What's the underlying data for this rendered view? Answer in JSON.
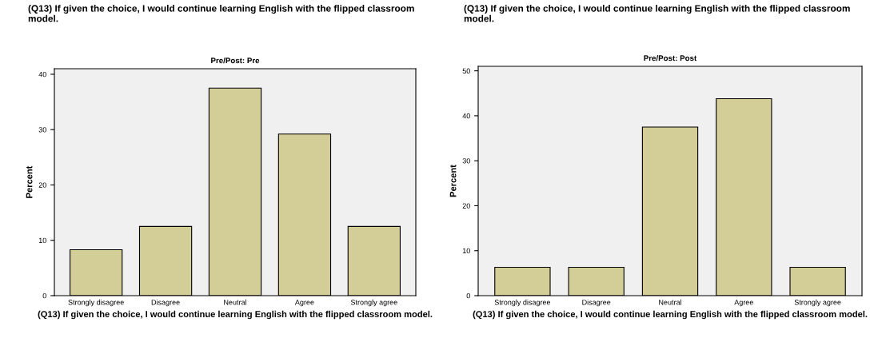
{
  "chart_data": [
    {
      "type": "bar",
      "title": "(Q13) If given the choice, I would continue learning English with the flipped classroom model.",
      "subtitle": "Pre/Post: Pre",
      "xlabel": "(Q13) If given the choice, I would continue learning English with the flipped classroom model.",
      "ylabel": "Percent",
      "categories": [
        "Strongly disagree",
        "Disagree",
        "Neutral",
        "Agree",
        "Strongly agree"
      ],
      "values": [
        8.3,
        12.5,
        37.5,
        29.2,
        12.5
      ],
      "color": "#d3ce97",
      "ylim": [
        0,
        41
      ],
      "yticks": [
        0,
        10,
        20,
        30,
        40
      ]
    },
    {
      "type": "bar",
      "title": "(Q13) If given the choice, I would continue learning English with the flipped classroom model.",
      "subtitle": "Pre/Post: Post",
      "xlabel": "(Q13) If given the choice, I would continue learning English with the flipped classroom model.",
      "ylabel": "Percent",
      "categories": [
        "Strongly disagree",
        "Disagree",
        "Neutral",
        "Agree",
        "Strongly agree"
      ],
      "values": [
        6.3,
        6.3,
        37.5,
        43.8,
        6.3
      ],
      "color": "#d3ce97",
      "ylim": [
        0,
        51
      ],
      "yticks": [
        0,
        10,
        20,
        30,
        40,
        50
      ]
    }
  ]
}
